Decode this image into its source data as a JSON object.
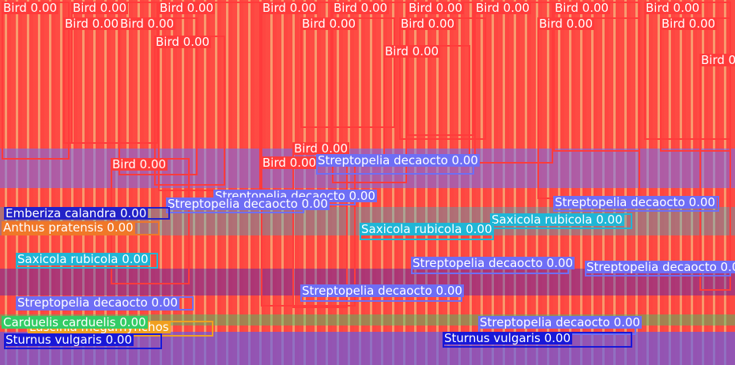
{
  "colors": {
    "bird": "#ff3b3b",
    "streptopelia": "#6e6ef5",
    "saxicola": "#1fb6d6",
    "emberiza": "#2222c8",
    "anthus": "#f07828",
    "luscinia": "#f0a020",
    "sturnus": "#1818d8",
    "carduelis": "#33cc66"
  },
  "detections": [
    {
      "label": "Bird 0.00",
      "cls": "bird"
    },
    {
      "label": "Bird 0.00",
      "cls": "bird"
    },
    {
      "label": "Bird 0.00",
      "cls": "bird"
    },
    {
      "label": "Bird 0.00",
      "cls": "bird"
    },
    {
      "label": "Bird 0.00",
      "cls": "bird"
    },
    {
      "label": "Bird 0.00",
      "cls": "bird"
    },
    {
      "label": "Bird 0.00",
      "cls": "bird"
    },
    {
      "label": "Bird 0.00",
      "cls": "bird"
    },
    {
      "label": "Bird 0.00",
      "cls": "bird"
    },
    {
      "label": "Bird 0.00",
      "cls": "bird"
    },
    {
      "label": "Bird 0.00",
      "cls": "bird"
    },
    {
      "label": "Bird 0.00",
      "cls": "bird"
    },
    {
      "label": "Bird 0.00",
      "cls": "bird"
    },
    {
      "label": "Bird 0.00",
      "cls": "bird"
    },
    {
      "label": "Bird 0.00",
      "cls": "bird"
    },
    {
      "label": "Bird 0.00",
      "cls": "bird"
    },
    {
      "label": "Bird 0.00",
      "cls": "bird"
    },
    {
      "label": "Bird 0.00",
      "cls": "bird"
    },
    {
      "label": "Bird 0.00",
      "cls": "bird"
    },
    {
      "label": "Bird 0.00",
      "cls": "bird"
    },
    {
      "label": "Bird 0.00",
      "cls": "bird"
    },
    {
      "label": "Streptopelia decaocto 0.00",
      "cls": "streptopelia"
    },
    {
      "label": "Streptopelia decaocto 0.00",
      "cls": "streptopelia"
    },
    {
      "label": "Streptopelia decaocto 0.00",
      "cls": "streptopelia"
    },
    {
      "label": "Streptopelia decaocto 0.00",
      "cls": "streptopelia"
    },
    {
      "label": "Streptopelia decaocto 0.00",
      "cls": "streptopelia"
    },
    {
      "label": "Streptopelia decaocto 0.00",
      "cls": "streptopelia"
    },
    {
      "label": "Streptopelia decaocto 0.00",
      "cls": "streptopelia"
    },
    {
      "label": "Streptopelia decaocto 0.00",
      "cls": "streptopelia"
    },
    {
      "label": "Saxicola rubicola 0.00",
      "cls": "saxicola"
    },
    {
      "label": "Saxicola rubicola 0.00",
      "cls": "saxicola"
    },
    {
      "label": "Saxicola rubicola 0.00",
      "cls": "saxicola"
    },
    {
      "label": "Emberiza calandra 0.00",
      "cls": "emberiza"
    },
    {
      "label": "Anthus pratensis 0.00",
      "cls": "anthus"
    },
    {
      "label": "Luscinia megarhynchos",
      "cls": "luscinia"
    },
    {
      "label": "Sturnus vulgaris 0.00",
      "cls": "sturnus"
    },
    {
      "label": "Sturnus vulgaris 0.00",
      "cls": "sturnus"
    },
    {
      "label": "Carduelis carduelis 0.00",
      "cls": "carduelis"
    },
    {
      "label": "Streptopelia decaocto 0.00",
      "cls": "streptopelia"
    }
  ]
}
